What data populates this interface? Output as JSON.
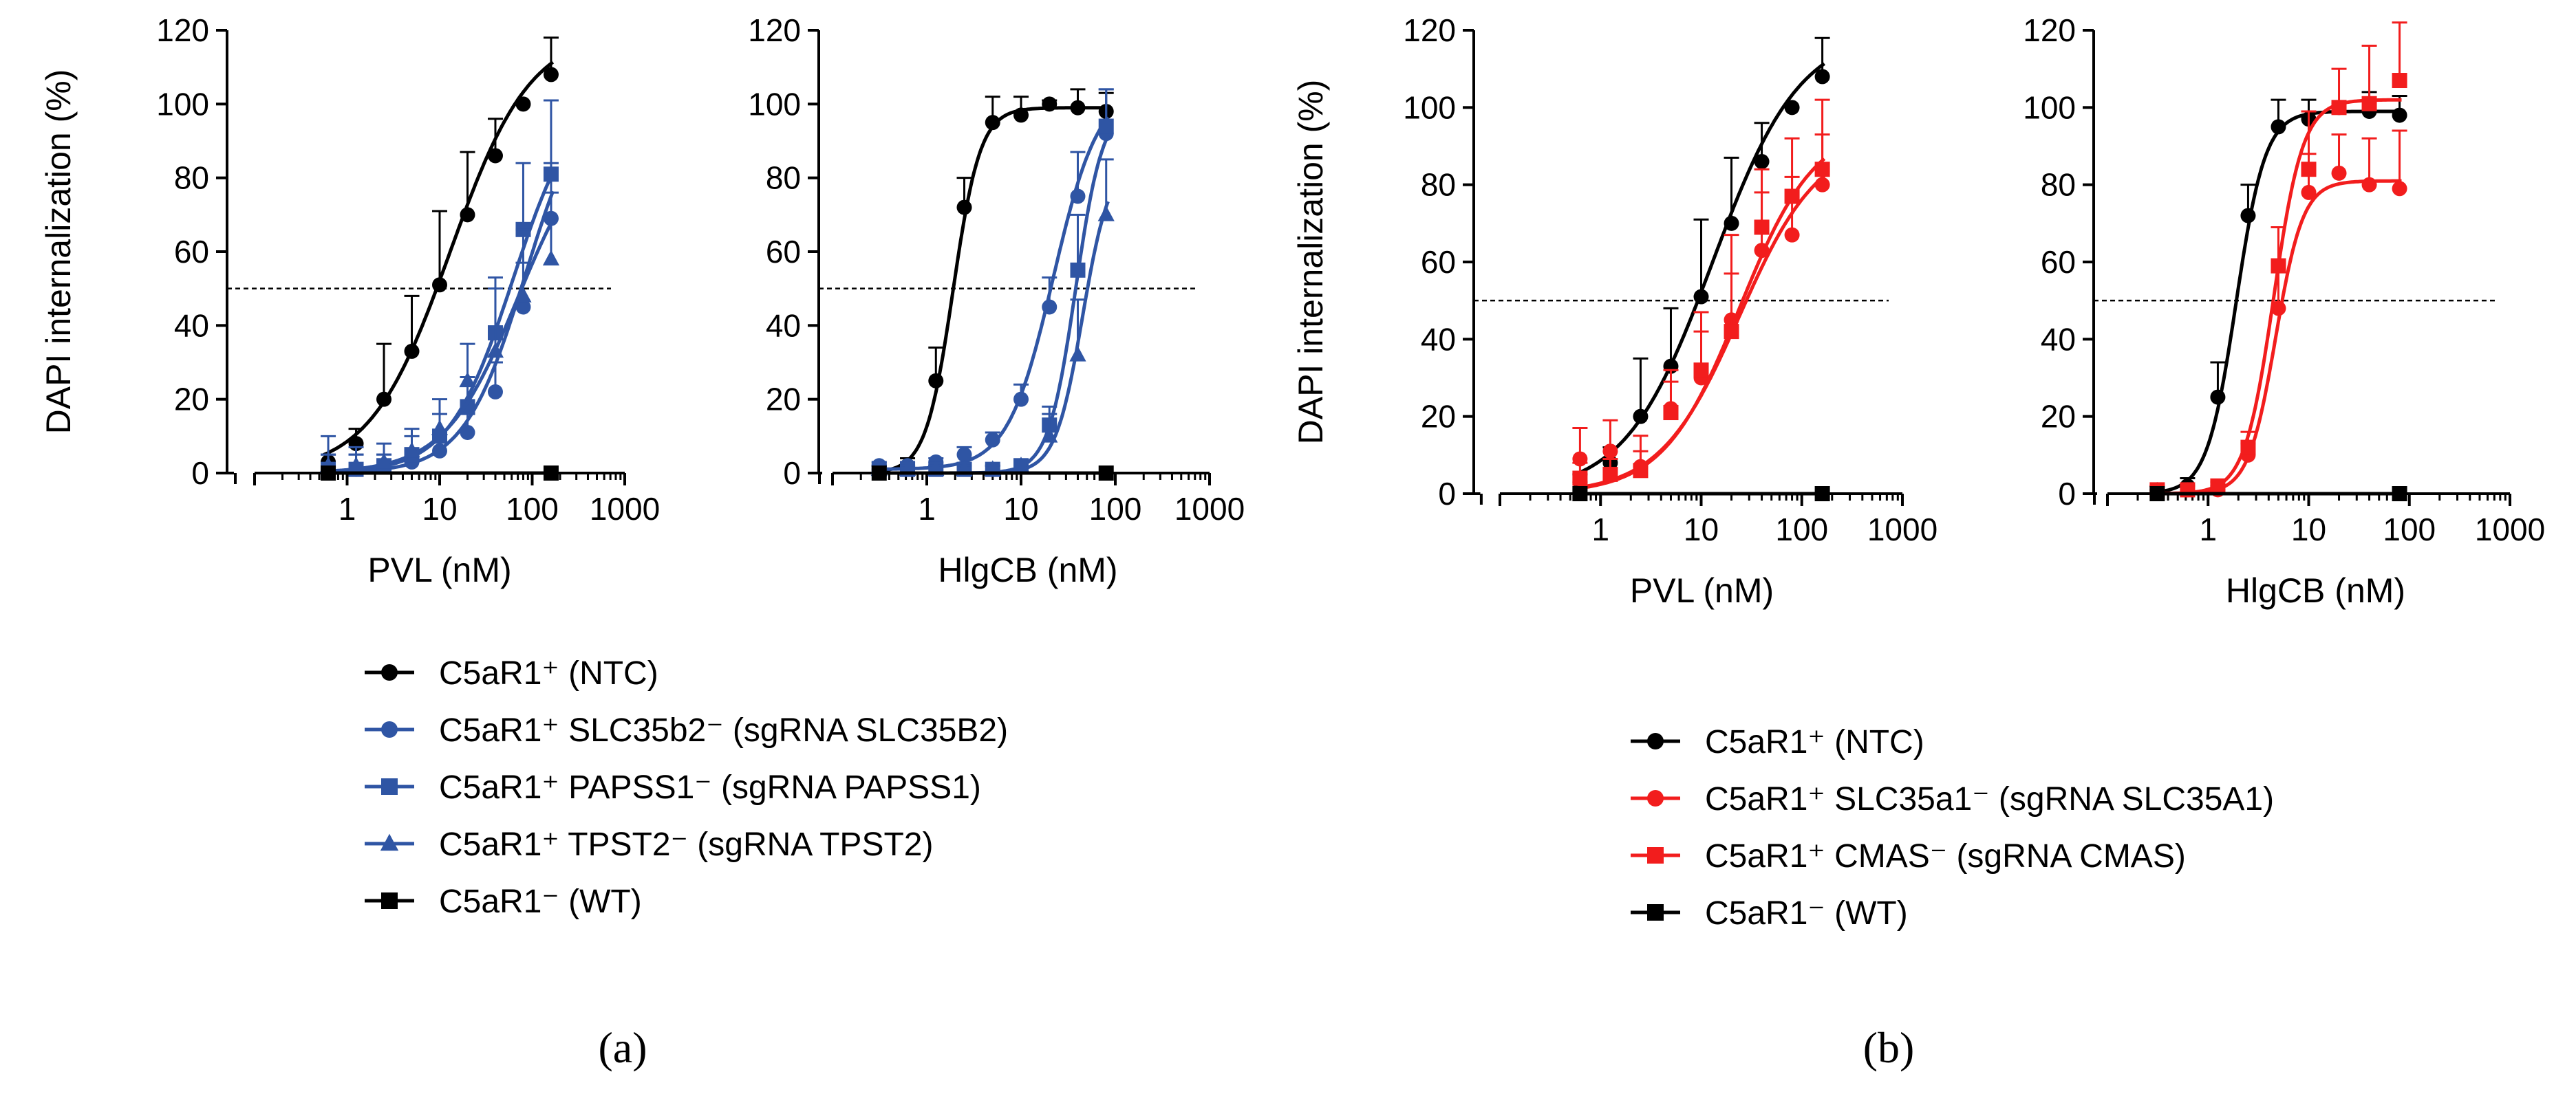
{
  "colors": {
    "black": "#000000",
    "blue": "#2F55A4",
    "red": "#F21D1D"
  },
  "panels": {
    "a": {
      "label": "(a)"
    },
    "b": {
      "label": "(b)"
    }
  },
  "legends": {
    "a": [
      {
        "name": "C5aR1⁺ (NTC)",
        "color": "black",
        "marker": "circle"
      },
      {
        "name": "C5aR1⁺ SLC35b2⁻ (sgRNA SLC35B2)",
        "color": "blue",
        "marker": "circle"
      },
      {
        "name": "C5aR1⁺ PAPSS1⁻ (sgRNA PAPSS1)",
        "color": "blue",
        "marker": "square"
      },
      {
        "name": "C5aR1⁺ TPST2⁻ (sgRNA TPST2)",
        "color": "blue",
        "marker": "triangle"
      },
      {
        "name": "C5aR1⁻ (WT)",
        "color": "black",
        "marker": "square"
      }
    ],
    "b": [
      {
        "name": "C5aR1⁺ (NTC)",
        "color": "black",
        "marker": "circle"
      },
      {
        "name": "C5aR1⁺ SLC35a1⁻ (sgRNA SLC35A1)",
        "color": "red",
        "marker": "circle"
      },
      {
        "name": "C5aR1⁺ CMAS⁻ (sgRNA CMAS)",
        "color": "red",
        "marker": "square"
      },
      {
        "name": "C5aR1⁻ (WT)",
        "color": "black",
        "marker": "square"
      }
    ]
  },
  "chart_data": [
    {
      "id": "a-pvl",
      "panel": "a",
      "type": "line",
      "xlabel": "PVL (nM)",
      "ylabel": "DAPI internalization (%)",
      "xscale": "log",
      "xlim": [
        0.1,
        1000
      ],
      "ylim": [
        0,
        120
      ],
      "xticks": [
        1,
        10,
        100,
        1000
      ],
      "xtick_labels": [
        "1",
        "10",
        "100",
        "1000"
      ],
      "yticks": [
        0,
        20,
        40,
        60,
        80,
        100,
        120
      ],
      "ytick_labels": [
        "0",
        "20",
        "40",
        "60",
        "80",
        "100",
        "120"
      ],
      "reference_line": 50,
      "series": [
        {
          "name": "C5aR1⁺ (NTC)",
          "color": "black",
          "marker": "circle",
          "x": [
            0.625,
            1.25,
            2.5,
            5,
            10,
            20,
            40,
            80,
            160
          ],
          "y": [
            3,
            8,
            20,
            33,
            51,
            70,
            86,
            100,
            108
          ],
          "err": [
            2,
            4,
            15,
            15,
            20,
            17,
            10,
            0,
            10
          ],
          "fit": {
            "bottom": 0,
            "top": 120,
            "ec50": 13,
            "hill": 1.0
          }
        },
        {
          "name": "C5aR1⁺ SLC35b2⁻ (sgRNA SLC35B2)",
          "color": "blue",
          "marker": "circle",
          "x": [
            0.625,
            1.25,
            2.5,
            5,
            10,
            20,
            40,
            80,
            160
          ],
          "y": [
            1,
            1,
            2,
            3,
            6,
            11,
            22,
            45,
            69
          ],
          "err": [
            4,
            4,
            3,
            3,
            4,
            5,
            8,
            12,
            15
          ],
          "fit": {
            "bottom": 0,
            "top": 108,
            "ec50": 85,
            "hill": 1.3
          }
        },
        {
          "name": "C5aR1⁺ PAPSS1⁻ (sgRNA PAPSS1)",
          "color": "blue",
          "marker": "square",
          "x": [
            0.625,
            1.25,
            2.5,
            5,
            10,
            20,
            40,
            80,
            160
          ],
          "y": [
            1,
            1,
            2,
            5,
            10,
            18,
            38,
            66,
            81
          ],
          "err": [
            4,
            4,
            3,
            5,
            6,
            8,
            12,
            18,
            20
          ],
          "fit": {
            "bottom": 0,
            "top": 105,
            "ec50": 62,
            "hill": 1.25
          }
        },
        {
          "name": "C5aR1⁺ TPST2⁻ (sgRNA TPST2)",
          "color": "blue",
          "marker": "triangle",
          "x": [
            0.625,
            1.25,
            2.5,
            5,
            10,
            20,
            40,
            80,
            160
          ],
          "y": [
            2,
            2,
            3,
            6,
            12,
            25,
            33,
            48,
            58
          ],
          "err": [
            8,
            5,
            5,
            6,
            8,
            10,
            20,
            18,
            18
          ],
          "fit": {
            "bottom": 0,
            "top": 95,
            "ec50": 70,
            "hill": 1.1
          }
        },
        {
          "name": "C5aR1⁻ (WT)",
          "color": "black",
          "marker": "square",
          "x": [
            0.625,
            160
          ],
          "y": [
            0,
            0
          ],
          "err": [
            0,
            0
          ],
          "fit": null
        }
      ]
    },
    {
      "id": "a-hlgcb",
      "panel": "a",
      "type": "line",
      "xlabel": "HlgCB (nM)",
      "ylabel": "",
      "xscale": "log",
      "xlim": [
        0.1,
        1000
      ],
      "ylim": [
        0,
        120
      ],
      "xticks": [
        1,
        10,
        100,
        1000
      ],
      "xtick_labels": [
        "1",
        "10",
        "100",
        "1000"
      ],
      "yticks": [
        0,
        20,
        40,
        60,
        80,
        100,
        120
      ],
      "ytick_labels": [
        "0",
        "20",
        "40",
        "60",
        "80",
        "100",
        "120"
      ],
      "reference_line": 50,
      "series": [
        {
          "name": "C5aR1⁺ (NTC)",
          "color": "black",
          "marker": "circle",
          "x": [
            0.3125,
            0.625,
            1.25,
            2.5,
            5,
            10,
            20,
            40,
            80
          ],
          "y": [
            1,
            2,
            25,
            72,
            95,
            97,
            100,
            99,
            98
          ],
          "err": [
            1,
            2,
            9,
            8,
            7,
            5,
            1,
            5,
            5
          ],
          "fit": {
            "bottom": 0,
            "top": 99,
            "ec50": 1.9,
            "hill": 3.0
          }
        },
        {
          "name": "C5aR1⁺ SLC35b2⁻ (sgRNA SLC35B2)",
          "color": "blue",
          "marker": "circle",
          "x": [
            0.3125,
            0.625,
            1.25,
            2.5,
            5,
            10,
            20,
            40,
            80
          ],
          "y": [
            2,
            2,
            3,
            5,
            9,
            20,
            45,
            75,
            92
          ],
          "err": [
            1,
            1,
            1,
            2,
            2,
            4,
            8,
            12,
            12
          ],
          "fit": {
            "bottom": 1,
            "top": 105,
            "ec50": 22,
            "hill": 1.8
          }
        },
        {
          "name": "C5aR1⁺ PAPSS1⁻ (sgRNA PAPSS1)",
          "color": "blue",
          "marker": "square",
          "x": [
            0.3125,
            0.625,
            1.25,
            2.5,
            5,
            10,
            20,
            40,
            80
          ],
          "y": [
            1,
            1,
            1,
            1,
            1,
            2,
            13,
            55,
            94
          ],
          "err": [
            1,
            1,
            1,
            1,
            1,
            1,
            5,
            15,
            10
          ],
          "fit": {
            "bottom": 0,
            "top": 100,
            "ec50": 38,
            "hill": 3.0
          }
        },
        {
          "name": "C5aR1⁺ TPST2⁻ (sgRNA TPST2)",
          "color": "blue",
          "marker": "triangle",
          "x": [
            0.3125,
            0.625,
            1.25,
            2.5,
            5,
            10,
            20,
            40,
            80
          ],
          "y": [
            1,
            1,
            1,
            1,
            1,
            2,
            10,
            32,
            70
          ],
          "err": [
            1,
            1,
            1,
            1,
            1,
            1,
            6,
            15,
            15
          ],
          "fit": {
            "bottom": 0,
            "top": 85,
            "ec50": 45,
            "hill": 3.0
          }
        },
        {
          "name": "C5aR1⁻ (WT)",
          "color": "black",
          "marker": "square",
          "x": [
            0.3125,
            80
          ],
          "y": [
            0,
            0
          ],
          "err": [
            0,
            0
          ],
          "fit": null
        }
      ]
    },
    {
      "id": "b-pvl",
      "panel": "b",
      "type": "line",
      "xlabel": "PVL (nM)",
      "ylabel": "DAPI internalization (%)",
      "xscale": "log",
      "xlim": [
        0.1,
        1000
      ],
      "ylim": [
        0,
        120
      ],
      "xticks": [
        1,
        10,
        100,
        1000
      ],
      "xtick_labels": [
        "1",
        "10",
        "100",
        "1000"
      ],
      "yticks": [
        0,
        20,
        40,
        60,
        80,
        100,
        120
      ],
      "ytick_labels": [
        "0",
        "20",
        "40",
        "60",
        "80",
        "100",
        "120"
      ],
      "reference_line": 50,
      "series": [
        {
          "name": "C5aR1⁺ (NTC)",
          "color": "black",
          "marker": "circle",
          "x": [
            0.625,
            1.25,
            2.5,
            5,
            10,
            20,
            40,
            80,
            160
          ],
          "y": [
            3,
            8,
            20,
            33,
            51,
            70,
            86,
            100,
            108
          ],
          "err": [
            2,
            4,
            15,
            15,
            20,
            17,
            10,
            0,
            10
          ],
          "fit": {
            "bottom": 0,
            "top": 120,
            "ec50": 13,
            "hill": 1.0
          }
        },
        {
          "name": "C5aR1⁺ SLC35a1⁻ (sgRNA SLC35A1)",
          "color": "red",
          "marker": "circle",
          "x": [
            0.625,
            1.25,
            2.5,
            5,
            10,
            20,
            40,
            80,
            160
          ],
          "y": [
            9,
            11,
            7,
            22,
            30,
            45,
            63,
            67,
            80
          ],
          "err": [
            8,
            8,
            8,
            10,
            12,
            12,
            15,
            15,
            13
          ],
          "fit": {
            "bottom": 0,
            "top": 92,
            "ec50": 24,
            "hill": 1.1
          }
        },
        {
          "name": "C5aR1⁺ CMAS⁻ (sgRNA CMAS)",
          "color": "red",
          "marker": "square",
          "x": [
            0.625,
            1.25,
            2.5,
            5,
            10,
            20,
            40,
            80,
            160
          ],
          "y": [
            4,
            5,
            6,
            21,
            32,
            42,
            69,
            77,
            84
          ],
          "err": [
            4,
            4,
            5,
            8,
            15,
            25,
            15,
            15,
            18
          ],
          "fit": {
            "bottom": 0,
            "top": 96,
            "ec50": 24,
            "hill": 1.15
          }
        },
        {
          "name": "C5aR1⁻ (WT)",
          "color": "black",
          "marker": "square",
          "x": [
            0.625,
            160
          ],
          "y": [
            0,
            0
          ],
          "err": [
            0,
            0
          ],
          "fit": null
        }
      ]
    },
    {
      "id": "b-hlgcb",
      "panel": "b",
      "type": "line",
      "xlabel": "HlgCB (nM)",
      "ylabel": "",
      "xscale": "log",
      "xlim": [
        0.1,
        1000
      ],
      "ylim": [
        0,
        120
      ],
      "xticks": [
        1,
        10,
        100,
        1000
      ],
      "xtick_labels": [
        "1",
        "10",
        "100",
        "1000"
      ],
      "yticks": [
        0,
        20,
        40,
        60,
        80,
        100,
        120
      ],
      "ytick_labels": [
        "0",
        "20",
        "40",
        "60",
        "80",
        "100",
        "120"
      ],
      "reference_line": 50,
      "series": [
        {
          "name": "C5aR1⁺ (NTC)",
          "color": "black",
          "marker": "circle",
          "x": [
            0.3125,
            0.625,
            1.25,
            2.5,
            5,
            10,
            20,
            40,
            80
          ],
          "y": [
            1,
            2,
            25,
            72,
            95,
            97,
            100,
            99,
            98
          ],
          "err": [
            1,
            2,
            9,
            8,
            7,
            5,
            1,
            5,
            5
          ],
          "fit": {
            "bottom": 0,
            "top": 99,
            "ec50": 1.9,
            "hill": 3.0
          }
        },
        {
          "name": "C5aR1⁺ SLC35a1⁻ (sgRNA SLC35A1)",
          "color": "red",
          "marker": "circle",
          "x": [
            0.3125,
            0.625,
            1.25,
            2.5,
            5,
            10,
            20,
            40,
            80
          ],
          "y": [
            1,
            1,
            1,
            10,
            48,
            78,
            83,
            80,
            79
          ],
          "err": [
            1,
            1,
            1,
            3,
            10,
            10,
            10,
            12,
            15
          ],
          "fit": {
            "bottom": 0,
            "top": 81,
            "ec50": 4.7,
            "hill": 3.2
          }
        },
        {
          "name": "C5aR1⁺ CMAS⁻ (sgRNA CMAS)",
          "color": "red",
          "marker": "square",
          "x": [
            0.3125,
            0.625,
            1.25,
            2.5,
            5,
            10,
            20,
            40,
            80
          ],
          "y": [
            1,
            1,
            2,
            12,
            59,
            84,
            100,
            101,
            107
          ],
          "err": [
            1,
            1,
            1,
            4,
            10,
            15,
            10,
            15,
            15
          ],
          "fit": {
            "bottom": 0,
            "top": 102,
            "ec50": 4.5,
            "hill": 3.0
          }
        },
        {
          "name": "C5aR1⁻ (WT)",
          "color": "black",
          "marker": "square",
          "x": [
            0.3125,
            80
          ],
          "y": [
            0,
            0
          ],
          "err": [
            0,
            0
          ],
          "fit": null
        }
      ]
    }
  ]
}
